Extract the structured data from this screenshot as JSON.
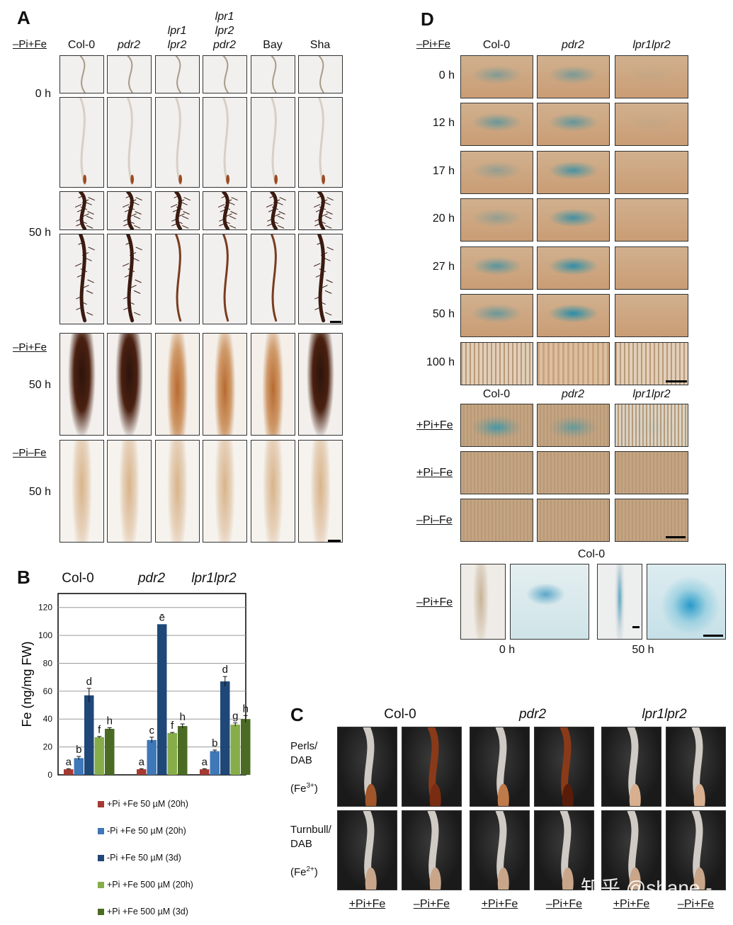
{
  "panel_a": {
    "label": "A",
    "condition_top": "–Pi+Fe",
    "columns": [
      "Col-0",
      "pdr2",
      "lpr1\nlpr2",
      "lpr1\nlpr2\npdr2",
      "Bay",
      "Sha"
    ],
    "times": [
      "0 h",
      "50 h"
    ],
    "lower_rows": [
      {
        "condition": "–Pi+Fe",
        "time": "50 h"
      },
      {
        "condition": "–Pi–Fe",
        "time": "50 h"
      }
    ]
  },
  "panel_b": {
    "label": "B",
    "genotypes": [
      "Col-0",
      "pdr2",
      "lpr1lpr2"
    ],
    "ylabel": "Fe (ng/mg FW)",
    "legend": [
      {
        "label": "+Pi +Fe 50 µM (20h)",
        "color": "#a63a32"
      },
      {
        "label": "-Pi +Fe 50 µM (20h)",
        "color": "#3f78b8"
      },
      {
        "label": "-Pi +Fe 50 µM (3d)",
        "color": "#1f4878"
      },
      {
        "label": "+Pi +Fe 500 µM (20h)",
        "color": "#86ad4a"
      },
      {
        "label": "+Pi +Fe 500 µM (3d)",
        "color": "#4b6b24"
      }
    ]
  },
  "chart_data": {
    "type": "bar",
    "categories": [
      "Col-0",
      "pdr2",
      "lpr1lpr2"
    ],
    "ylabel": "Fe (ng/mg FW)",
    "ylim": [
      0,
      130
    ],
    "yticks": [
      0,
      20,
      40,
      60,
      80,
      100,
      120
    ],
    "grid": true,
    "legend_position": "bottom",
    "series": [
      {
        "name": "+Pi +Fe 50 µM (20h)",
        "color": "#a63a32",
        "values": [
          4,
          4,
          4
        ],
        "errors": [
          0.4,
          0.4,
          0.4
        ],
        "letters": [
          "a",
          "a",
          "a"
        ]
      },
      {
        "name": "-Pi +Fe 50 µM (20h)",
        "color": "#3f78b8",
        "values": [
          12,
          25,
          17
        ],
        "errors": [
          1.2,
          2,
          0.8
        ],
        "letters": [
          "b",
          "c",
          "b"
        ]
      },
      {
        "name": "-Pi +Fe 50 µM (3d)",
        "color": "#1f4878",
        "values": [
          57,
          108,
          67
        ],
        "errors": [
          5,
          0,
          3.5
        ],
        "letters": [
          "d",
          "e",
          "d"
        ]
      },
      {
        "name": "+Pi +Fe 500 µM (20h)",
        "color": "#86ad4a",
        "values": [
          27,
          30,
          36
        ],
        "errors": [
          0.5,
          0.4,
          1.2
        ],
        "letters": [
          "f",
          "f",
          "g"
        ]
      },
      {
        "name": "+Pi +Fe 500 µM (3d)",
        "color": "#4b6b24",
        "values": [
          33,
          35,
          40
        ],
        "errors": [
          0.8,
          1.5,
          2.5
        ],
        "letters": [
          "h",
          "h",
          "h"
        ]
      }
    ]
  },
  "panel_c": {
    "label": "C",
    "genotypes": [
      "Col-0",
      "pdr2",
      "lpr1lpr2"
    ],
    "rows": [
      {
        "stain": "Perls/\nDAB",
        "ion": "(Fe",
        "sup": "3+",
        "close": ")"
      },
      {
        "stain": "Turnbull/\nDAB",
        "ion": "(Fe",
        "sup": "2+",
        "close": ")"
      }
    ],
    "conditions": [
      "+Pi+Fe",
      "–Pi+Fe",
      "+Pi+Fe",
      "–Pi+Fe",
      "+Pi+Fe",
      "–Pi+Fe"
    ],
    "watermark": "知乎 @shane -"
  },
  "panel_d": {
    "label": "D",
    "condition_top": "–Pi+Fe",
    "columns": [
      "Col-0",
      "pdr2",
      "lpr1lpr2"
    ],
    "times": [
      "0 h",
      "12 h",
      "17 h",
      "20 h",
      "27 h",
      "50 h",
      "100 h"
    ],
    "conditions_lower": [
      "+Pi+Fe",
      "+Pi–Fe",
      "–Pi–Fe"
    ],
    "bottom_genotype": "Col-0",
    "bottom_condition": "–Pi+Fe",
    "bottom_times": [
      "0 h",
      "50 h"
    ]
  }
}
